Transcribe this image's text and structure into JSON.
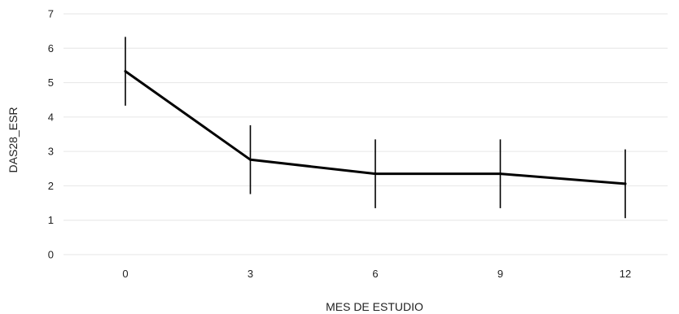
{
  "chart_data": {
    "type": "line",
    "title": "",
    "xlabel": "MES DE ESTUDIO",
    "ylabel": "DAS28_ESR",
    "x": [
      0,
      3,
      6,
      9,
      12
    ],
    "x_tick_labels": [
      "0",
      "3",
      "6",
      "9",
      "12"
    ],
    "y_ticks": [
      0,
      1,
      2,
      3,
      4,
      5,
      6,
      7
    ],
    "ylim": [
      0,
      7
    ],
    "grid": "horizontal",
    "series": [
      {
        "values": [
          5.33,
          2.76,
          2.35,
          2.35,
          2.06
        ],
        "error_low": [
          4.33,
          1.76,
          1.35,
          1.35,
          1.06
        ],
        "error_high": [
          6.33,
          3.76,
          3.35,
          3.35,
          3.06
        ],
        "color": "#000000"
      }
    ]
  }
}
